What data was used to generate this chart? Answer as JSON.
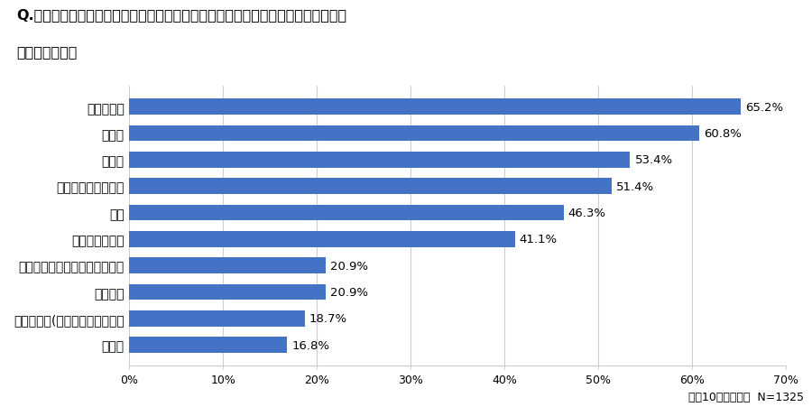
{
  "title_line1": "Q.今年の年末年始に、あなた自身が行う予定の風習や伝統行事を教えてください。",
  "title_line2": "（複数選択可）",
  "categories": [
    "年越しそば",
    "大掃除",
    "年賀状",
    "おせちなど正月料理",
    "初詣",
    "鏡餅や正月飾り",
    "親戚や知人などの集まりや訪問",
    "七草がゆ",
    "神棚の清掃(すす払い）・お供え",
    "鏡開き"
  ],
  "values": [
    65.2,
    60.8,
    53.4,
    51.4,
    46.3,
    41.1,
    20.9,
    20.9,
    18.7,
    16.8
  ],
  "bar_color": "#4472c4",
  "bar_edge_color": "none",
  "label_color": "#000000",
  "xlim": [
    0,
    70
  ],
  "xticks": [
    0,
    10,
    20,
    30,
    40,
    50,
    60,
    70
  ],
  "xtick_labels": [
    "0%",
    "10%",
    "20%",
    "30%",
    "40%",
    "50%",
    "60%",
    "70%"
  ],
  "footnote": "上位10位まで抜粋  N=1325",
  "background_color": "#ffffff",
  "grid_color": "#cccccc",
  "title_fontsize": 11.5,
  "label_fontsize": 10,
  "value_fontsize": 9.5,
  "tick_fontsize": 9,
  "footnote_fontsize": 9
}
